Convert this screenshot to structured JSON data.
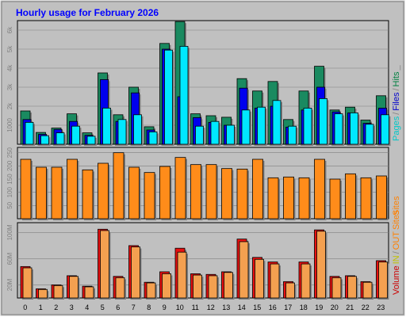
{
  "chart_data": [
    {
      "type": "bar",
      "title": "Hourly usage for February 2026",
      "categories": [
        "0",
        "1",
        "2",
        "3",
        "4",
        "5",
        "6",
        "7",
        "8",
        "9",
        "10",
        "11",
        "12",
        "13",
        "14",
        "15",
        "16",
        "17",
        "18",
        "19",
        "20",
        "21",
        "22",
        "23"
      ],
      "ylim": [
        0,
        6500
      ],
      "yticks": [
        {
          "v": 1000,
          "label": "1000"
        },
        {
          "v": 2000,
          "label": "2k"
        },
        {
          "v": 3000,
          "label": "3k"
        },
        {
          "v": 4000,
          "label": "4k"
        },
        {
          "v": 5000,
          "label": "5k"
        },
        {
          "v": 6000,
          "label": "6k"
        }
      ],
      "legend": [
        {
          "label": "Pages",
          "color": "#00c8c8"
        },
        {
          "label": "/",
          "color": "#808080"
        },
        {
          "label": "Files",
          "color": "#0000cc"
        },
        {
          "label": "/",
          "color": "#808080"
        },
        {
          "label": "Hits",
          "color": "#008040"
        },
        {
          "label": "_",
          "color": "#808080"
        }
      ],
      "series": [
        {
          "name": "Hits",
          "color": "#1a8a60",
          "values": [
            1750,
            620,
            850,
            1600,
            600,
            3750,
            1550,
            3000,
            920,
            5300,
            6450,
            1600,
            1500,
            1420,
            3450,
            2800,
            3300,
            1300,
            2800,
            4100,
            1800,
            1950,
            1270,
            2550
          ]
        },
        {
          "name": "Files",
          "color": "#0000ee",
          "values": [
            1300,
            520,
            780,
            1200,
            470,
            3400,
            1200,
            2700,
            750,
            5000,
            2500,
            1400,
            1150,
            1000,
            2950,
            1900,
            2000,
            900,
            1800,
            3000,
            1700,
            1650,
            1100,
            1900
          ]
        },
        {
          "name": "Pages",
          "color": "#00e8ff",
          "values": [
            1150,
            450,
            600,
            950,
            420,
            1900,
            1300,
            1550,
            650,
            4950,
            5150,
            950,
            1200,
            1000,
            1800,
            1950,
            2300,
            950,
            1900,
            2400,
            1600,
            1650,
            1050,
            1550
          ]
        }
      ]
    },
    {
      "type": "bar",
      "categories": [
        "0",
        "1",
        "2",
        "3",
        "4",
        "5",
        "6",
        "7",
        "8",
        "9",
        "10",
        "11",
        "12",
        "13",
        "14",
        "15",
        "16",
        "17",
        "18",
        "19",
        "20",
        "21",
        "22",
        "23"
      ],
      "ylim": [
        0,
        270
      ],
      "yticks": [
        {
          "v": 50,
          "label": "50"
        },
        {
          "v": 100,
          "label": "100"
        },
        {
          "v": 150,
          "label": "150"
        },
        {
          "v": 200,
          "label": "200"
        },
        {
          "v": 250,
          "label": "250"
        }
      ],
      "legend": [
        {
          "label": "Sites",
          "color": "#ff8000"
        }
      ],
      "series": [
        {
          "name": "Sites",
          "color": "#ff8c1a",
          "values": [
            225,
            195,
            195,
            225,
            185,
            210,
            250,
            195,
            175,
            198,
            232,
            205,
            205,
            190,
            188,
            225,
            155,
            158,
            155,
            225,
            150,
            170,
            155,
            162
          ]
        }
      ]
    },
    {
      "type": "bar",
      "categories": [
        "0",
        "1",
        "2",
        "3",
        "4",
        "5",
        "6",
        "7",
        "8",
        "9",
        "10",
        "11",
        "12",
        "13",
        "14",
        "15",
        "16",
        "17",
        "18",
        "19",
        "20",
        "21",
        "22",
        "23"
      ],
      "ylim": [
        0,
        115
      ],
      "yticks": [
        {
          "v": 20,
          "label": "20M"
        },
        {
          "v": 60,
          "label": "60M"
        },
        {
          "v": 100,
          "label": "100M"
        }
      ],
      "legend": [
        {
          "label": "Volume",
          "color": "#cc0000"
        },
        {
          "label": "IN",
          "color": "#c0c000"
        },
        {
          "label": "/",
          "color": "#808080"
        },
        {
          "label": "OUT",
          "color": "#ff8000"
        },
        {
          "label": "Sites",
          "color": "#ff8000"
        }
      ],
      "series": [
        {
          "name": "Volume",
          "color": "#e81010",
          "values": [
            48,
            14,
            20,
            34,
            18,
            105,
            33,
            80,
            24,
            40,
            76,
            37,
            36,
            40,
            90,
            62,
            55,
            25,
            55,
            104,
            33,
            34,
            25,
            57
          ]
        },
        {
          "name": "OUT",
          "color": "#f4a050",
          "values": [
            46,
            13,
            19,
            33,
            17,
            103,
            31,
            78,
            23,
            37,
            70,
            35,
            34,
            39,
            86,
            59,
            52,
            23,
            52,
            102,
            31,
            33,
            24,
            55
          ]
        }
      ]
    }
  ]
}
